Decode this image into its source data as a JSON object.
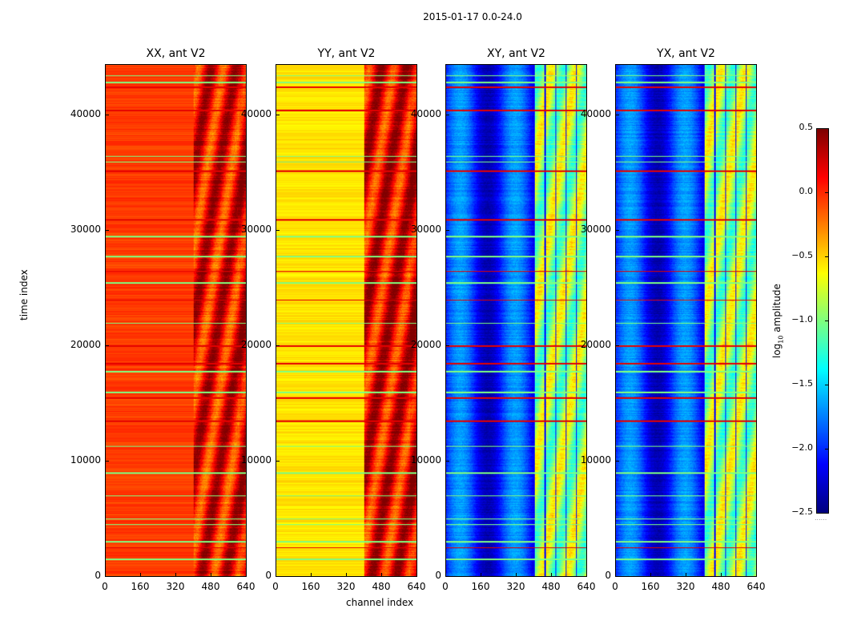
{
  "chart_data": {
    "type": "heatmap",
    "title": "2015-01-17 0.0-24.0",
    "xlabel": "channel index",
    "ylabel": "time index",
    "xlim": [
      0,
      640
    ],
    "ylim": [
      0,
      44400
    ],
    "xticks": [
      "0",
      "160",
      "320",
      "480",
      "640"
    ],
    "xtick_values": [
      0,
      160,
      320,
      480,
      640
    ],
    "yticks": [
      "0",
      "10000",
      "20000",
      "30000",
      "40000"
    ],
    "ytick_values": [
      0,
      10000,
      20000,
      30000,
      40000
    ],
    "panels": [
      {
        "title": "XX, ant V2",
        "base_low_channels": -0.05,
        "base_high_channels": 0.12,
        "high_channel_start": 400,
        "show_xlabel": false
      },
      {
        "title": "YY, ant V2",
        "base_low_channels": -0.55,
        "base_high_channels": 0.15,
        "high_channel_start": 400,
        "show_xlabel": true
      },
      {
        "title": "XY, ant V2",
        "base_low_channels": -2.0,
        "base_high_channels": -0.9,
        "high_channel_start": 400,
        "show_xlabel": false
      },
      {
        "title": "YX, ant V2",
        "base_low_channels": -2.0,
        "base_high_channels": -0.9,
        "high_channel_start": 400,
        "show_xlabel": false
      }
    ],
    "flagged_low_rows": [
      43500,
      42900,
      36500,
      36000,
      29500,
      27800,
      25500,
      22000,
      17800,
      16000,
      11300,
      9000,
      7000,
      5000,
      4500,
      3000,
      1500
    ],
    "high_rows": [
      42500,
      40500,
      35200,
      31000,
      26500,
      24000,
      20000,
      18500,
      15500,
      13500,
      2500
    ],
    "colorbar": {
      "label_base": "log",
      "label_sub": "10",
      "label_rest": " amplitude",
      "range": [
        -2.5,
        0.5
      ],
      "ticks": [
        "0.5",
        "0.0",
        "−0.5",
        "−1.0",
        "−1.5",
        "−2.0",
        "−2.5"
      ],
      "tick_values": [
        0.5,
        0.0,
        -0.5,
        -1.0,
        -1.5,
        -2.0,
        -2.5
      ]
    }
  }
}
